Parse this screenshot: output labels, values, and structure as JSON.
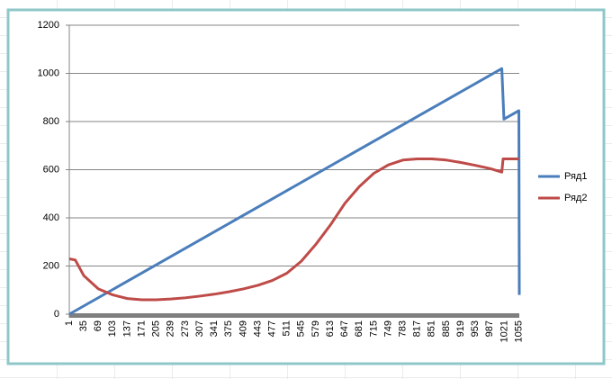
{
  "chart_data": {
    "type": "line",
    "series": [
      {
        "name": "Ряд1",
        "color": "#4a7ebb",
        "x": [
          1,
          1015,
          1020,
          1055,
          1056
        ],
        "values": [
          0,
          1020,
          810,
          845,
          80
        ]
      },
      {
        "name": "Ряд2",
        "color": "#be4b48",
        "x": [
          1,
          15,
          35,
          69,
          103,
          137,
          171,
          205,
          239,
          273,
          307,
          341,
          375,
          409,
          443,
          477,
          511,
          545,
          579,
          613,
          647,
          681,
          715,
          749,
          783,
          817,
          851,
          885,
          919,
          953,
          987,
          1015,
          1018,
          1055
        ],
        "values": [
          230,
          225,
          160,
          105,
          80,
          65,
          60,
          60,
          63,
          68,
          75,
          83,
          93,
          105,
          120,
          140,
          170,
          220,
          290,
          370,
          460,
          530,
          585,
          620,
          640,
          645,
          645,
          640,
          630,
          618,
          605,
          590,
          645,
          645
        ]
      }
    ],
    "xlim": [
      1,
      1056
    ],
    "xticks": [
      1,
      35,
      69,
      103,
      137,
      171,
      205,
      239,
      273,
      307,
      341,
      375,
      409,
      443,
      477,
      511,
      545,
      579,
      613,
      647,
      681,
      715,
      749,
      783,
      817,
      851,
      885,
      919,
      953,
      987,
      1021,
      1055
    ],
    "ylim": [
      0,
      1200
    ],
    "yticks": [
      0,
      200,
      400,
      600,
      800,
      1000,
      1200
    ],
    "grid": true,
    "legend": "right"
  }
}
